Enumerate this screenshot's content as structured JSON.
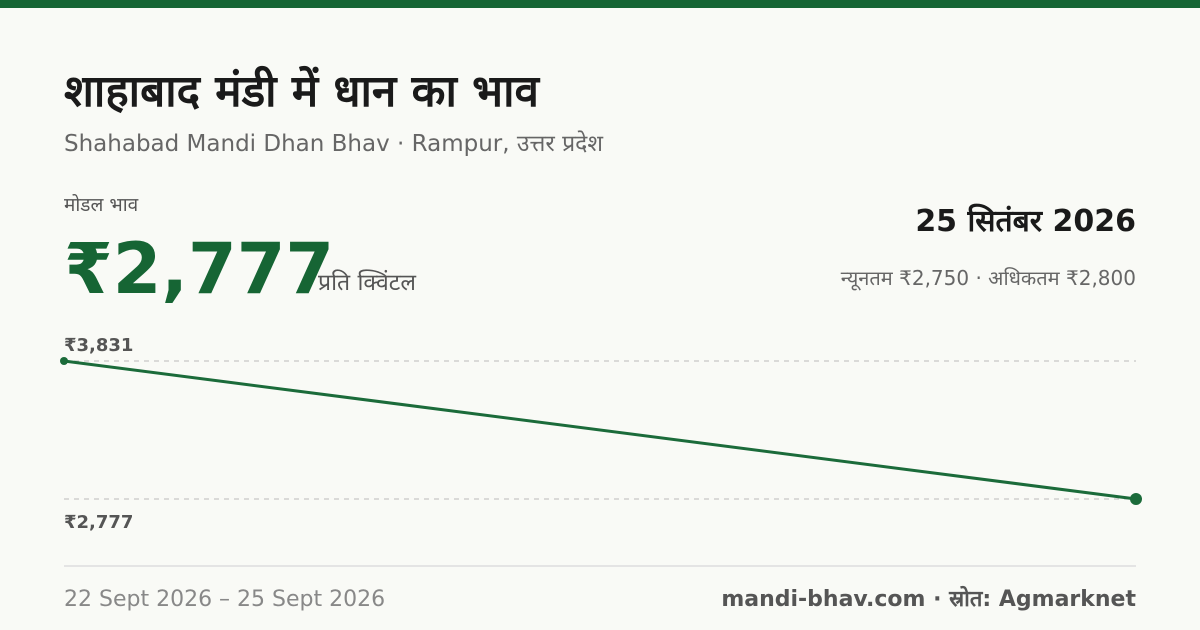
{
  "header": {
    "title": "शाहाबाद मंडी में धान का भाव",
    "subtitle": "Shahabad Mandi Dhan Bhav · Rampur, उत्तर प्रदेश"
  },
  "price": {
    "label": "मोडल भाव",
    "value": "₹2,777",
    "unit": "प्रति क्विंटल",
    "date": "25 सितंबर 2026",
    "range": "न्यूनतम ₹2,750 · अधिकतम ₹2,800"
  },
  "chart_data": {
    "type": "line",
    "categories": [
      null,
      null
    ],
    "values": [
      3831,
      2777
    ],
    "color": "#1b6b3a",
    "ylim": [
      2777,
      3831
    ],
    "yticks": [
      {
        "value": 3831,
        "label": "₹3,831"
      },
      {
        "value": 2777,
        "label": "₹2,777"
      }
    ],
    "grid": true
  },
  "footer": {
    "dates": "22 Sept 2026 – 25 Sept 2026",
    "source": "mandi-bhav.com · स्रोत: Agmarknet"
  }
}
